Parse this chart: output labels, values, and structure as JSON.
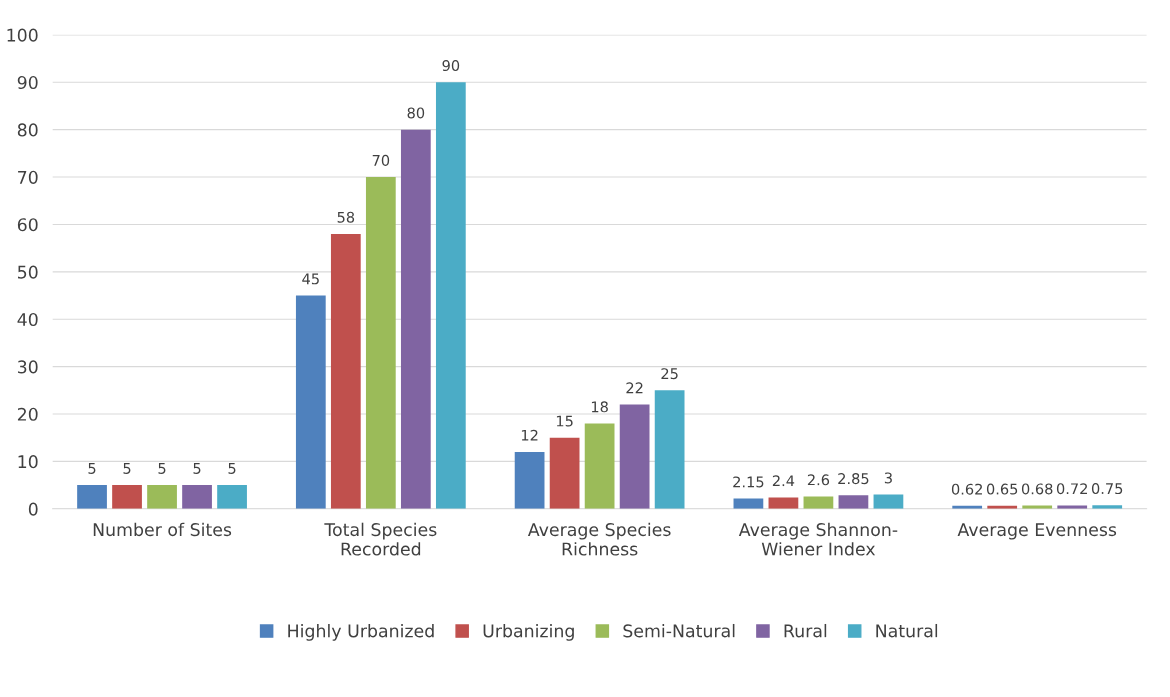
{
  "chart_data": {
    "type": "bar",
    "categories": [
      "Number of Sites",
      "Total Species Recorded",
      "Average Species Richness",
      "Average Shannon-Wiener Index",
      "Average Evenness"
    ],
    "series": [
      {
        "name": "Highly Urbanized",
        "color": "#4f81bd",
        "values": [
          5,
          45,
          12,
          2.15,
          0.62
        ]
      },
      {
        "name": "Urbanizing",
        "color": "#c0504d",
        "values": [
          5,
          58,
          15,
          2.4,
          0.65
        ]
      },
      {
        "name": "Semi-Natural",
        "color": "#9bbb59",
        "values": [
          5,
          70,
          18,
          2.6,
          0.68
        ]
      },
      {
        "name": "Rural",
        "color": "#8064a2",
        "values": [
          5,
          80,
          22,
          2.85,
          0.72
        ]
      },
      {
        "name": "Natural",
        "color": "#4bacc6",
        "values": [
          5,
          90,
          25,
          3,
          0.75
        ]
      }
    ],
    "ylim": [
      0,
      100
    ],
    "yticks": [
      0,
      10,
      20,
      30,
      40,
      50,
      60,
      70,
      80,
      90,
      100
    ],
    "grid": "y",
    "legend": "bottom",
    "data_labels": true
  }
}
